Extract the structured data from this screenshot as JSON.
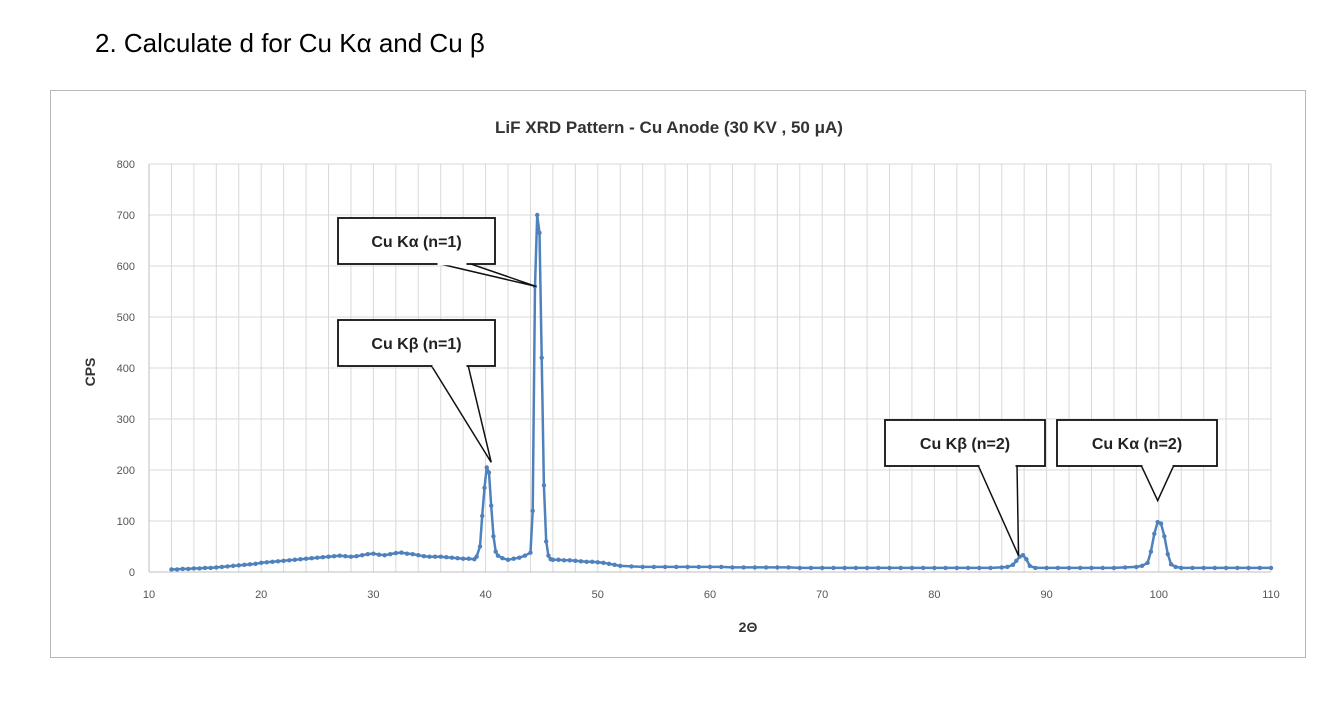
{
  "question": "2.   Calculate d for Cu Kα and Cu β",
  "chart_data": {
    "type": "line",
    "title": "LiF XRD Pattern - Cu Anode (30 KV , 50 μA)",
    "xlabel": "2Θ",
    "ylabel": "CPS",
    "xlim": [
      10,
      110
    ],
    "ylim": [
      0,
      800
    ],
    "xticks": [
      10,
      20,
      30,
      40,
      50,
      60,
      70,
      80,
      90,
      100,
      110
    ],
    "yticks": [
      0,
      100,
      200,
      300,
      400,
      500,
      600,
      700,
      800
    ],
    "grid": true,
    "legend": "none",
    "line_color": "#4f81bd",
    "series": [
      {
        "x": [
          12,
          12.5,
          13,
          13.5,
          14,
          14.5,
          15,
          15.5,
          16,
          16.5,
          17,
          17.5,
          18,
          18.5,
          19,
          19.5,
          20,
          20.5,
          21,
          21.5,
          22,
          22.5,
          23,
          23.5,
          24,
          24.5,
          25,
          25.5,
          26,
          26.5,
          27,
          27.5,
          28,
          28.5,
          29,
          29.5,
          30,
          30.5,
          31,
          31.5,
          32,
          32.5,
          33,
          33.5,
          34,
          34.5,
          35,
          35.5,
          36,
          36.5,
          37,
          37.5,
          38,
          38.5,
          39,
          39.2,
          39.5,
          39.7,
          39.9,
          40.1,
          40.3,
          40.5,
          40.7,
          40.9,
          41.1,
          41.5,
          42,
          42.5,
          43,
          43.5,
          44,
          44.2,
          44.4,
          44.6,
          44.8,
          45,
          45.2,
          45.4,
          45.6,
          45.8,
          46,
          46.5,
          47,
          47.5,
          48,
          48.5,
          49,
          49.5,
          50,
          50.5,
          51,
          51.5,
          52,
          53,
          54,
          55,
          56,
          57,
          58,
          59,
          60,
          61,
          62,
          63,
          64,
          65,
          66,
          67,
          68,
          69,
          70,
          71,
          72,
          73,
          74,
          75,
          76,
          77,
          78,
          79,
          80,
          81,
          82,
          83,
          84,
          85,
          86,
          86.5,
          87,
          87.3,
          87.6,
          87.9,
          88.2,
          88.5,
          89,
          90,
          91,
          92,
          93,
          94,
          95,
          96,
          97,
          98,
          98.5,
          99,
          99.3,
          99.6,
          99.9,
          100.2,
          100.5,
          100.8,
          101.1,
          101.5,
          102,
          103,
          104,
          105,
          106,
          107,
          108,
          109,
          110
        ],
        "y": [
          5,
          5,
          6,
          6,
          7,
          7,
          8,
          8,
          9,
          10,
          11,
          12,
          13,
          14,
          15,
          16,
          18,
          19,
          20,
          21,
          22,
          23,
          24,
          25,
          26,
          27,
          28,
          29,
          30,
          31,
          32,
          31,
          30,
          31,
          33,
          35,
          36,
          34,
          33,
          35,
          37,
          38,
          36,
          35,
          33,
          31,
          30,
          30,
          30,
          29,
          28,
          27,
          26,
          26,
          25,
          30,
          50,
          110,
          165,
          205,
          195,
          130,
          70,
          40,
          32,
          27,
          24,
          26,
          28,
          32,
          38,
          120,
          560,
          700,
          665,
          420,
          170,
          60,
          32,
          25,
          24,
          24,
          23,
          23,
          22,
          21,
          20,
          20,
          19,
          18,
          16,
          14,
          12,
          11,
          10,
          10,
          10,
          10,
          10,
          10,
          10,
          10,
          9,
          9,
          9,
          9,
          9,
          9,
          8,
          8,
          8,
          8,
          8,
          8,
          8,
          8,
          8,
          8,
          8,
          8,
          8,
          8,
          8,
          8,
          8,
          8,
          9,
          10,
          14,
          22,
          30,
          33,
          25,
          12,
          8,
          8,
          8,
          8,
          8,
          8,
          8,
          8,
          9,
          10,
          12,
          18,
          40,
          75,
          98,
          95,
          70,
          35,
          15,
          10,
          8,
          8,
          8,
          8,
          8,
          8,
          8,
          8,
          8
        ]
      }
    ],
    "annotations": [
      {
        "id": "ka1",
        "text": "Cu Kα (n=1)",
        "x": 44.5,
        "y": 560
      },
      {
        "id": "kb1",
        "text": "Cu Kβ (n=1)",
        "x": 40.5,
        "y": 215
      },
      {
        "id": "kb2",
        "text": "Cu Kβ (n=2)",
        "x": 87.5,
        "y": 32
      },
      {
        "id": "ka2",
        "text": "Cu Kα (n=2)",
        "x": 99.9,
        "y": 140
      }
    ]
  }
}
